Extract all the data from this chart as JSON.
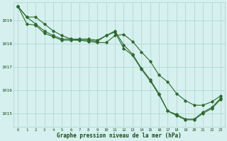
{
  "hours": [
    0,
    1,
    2,
    3,
    4,
    5,
    6,
    7,
    8,
    9,
    10,
    11,
    12,
    13,
    14,
    15,
    16,
    17,
    18,
    19,
    20,
    21,
    22,
    23
  ],
  "line1": [
    1019.6,
    1019.15,
    1018.85,
    1018.55,
    1018.35,
    1018.2,
    1018.2,
    1018.2,
    1018.2,
    1018.15,
    1018.35,
    1018.55,
    1017.95,
    1017.55,
    1016.95,
    1016.45,
    1015.85,
    1015.1,
    1014.95,
    1014.75,
    1014.75,
    1015.05,
    1015.25,
    1015.65
  ],
  "line2": [
    1019.6,
    1018.85,
    1018.8,
    1018.45,
    1018.3,
    1018.15,
    1018.15,
    1018.15,
    1018.15,
    1018.1,
    1018.35,
    1018.5,
    1017.8,
    1017.5,
    1016.9,
    1016.4,
    1015.8,
    1015.1,
    1014.9,
    1014.72,
    1014.72,
    1015.0,
    1015.2,
    1015.6
  ],
  "line3": [
    1019.6,
    1019.15,
    1019.15,
    1018.85,
    1018.55,
    1018.35,
    1018.2,
    1018.15,
    1018.1,
    1018.05,
    1018.05,
    1018.35,
    1018.4,
    1018.1,
    1017.65,
    1017.25,
    1016.65,
    1016.35,
    1015.85,
    1015.55,
    1015.35,
    1015.35,
    1015.5,
    1015.75
  ],
  "line_color": "#2d6a2d",
  "bg_color": "#d5f0ee",
  "grid_color": "#aad4cc",
  "text_color": "#1a4a1a",
  "xlabel": "Graphe pression niveau de la mer (hPa)",
  "ylim_min": 1014.4,
  "ylim_max": 1019.8,
  "xlim_min": -0.5,
  "xlim_max": 23.5
}
